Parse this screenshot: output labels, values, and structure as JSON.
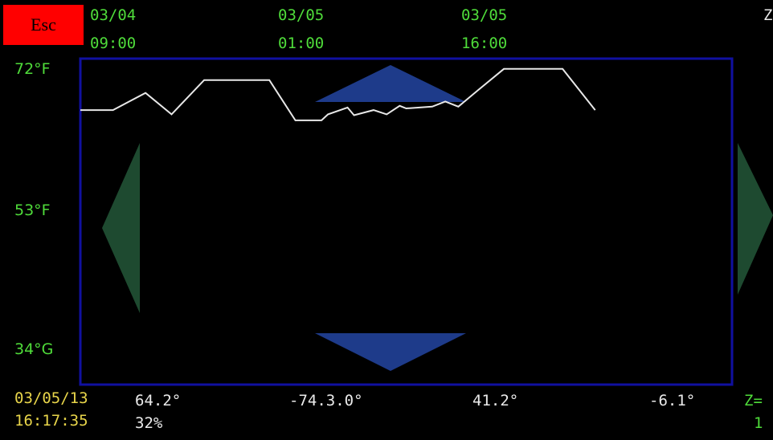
{
  "esc_label": "Esc",
  "time_labels": [
    {
      "date": "03/04",
      "time": "09:00"
    },
    {
      "date": "03/05",
      "time": "01:00"
    },
    {
      "date": "03/05",
      "time": "16:00"
    }
  ],
  "corner_label": "Z",
  "y_labels": {
    "top": "72°F",
    "mid": "53°F",
    "bottom": "34°G"
  },
  "bottom": {
    "date": "03/05/13",
    "time": "16:17:35",
    "temp": "64.2°",
    "humidity": "32%",
    "lon": "-74.3.0°",
    "lat": "41.2°",
    "val": "-6.1°",
    "zoom_label": "Z=",
    "zoom_value": "1"
  },
  "colors": {
    "frame": "#1010a0",
    "line": "#e8e8e8",
    "nav_lr": "#1e4a30",
    "nav_ud": "#1e3b8a",
    "text_green": "#4fdc3a",
    "text_yellow": "#e8d54a",
    "esc_bg": "#ff0000"
  },
  "icons": {
    "left": "arrow-left-icon",
    "right": "arrow-right-icon",
    "up": "arrow-up-icon",
    "down": "arrow-down-icon"
  },
  "chart_data": {
    "type": "line",
    "ylim": [
      34,
      72
    ],
    "x": [
      0,
      0.05,
      0.1,
      0.14,
      0.19,
      0.24,
      0.29,
      0.33,
      0.37,
      0.38,
      0.41,
      0.42,
      0.45,
      0.47,
      0.49,
      0.5,
      0.54,
      0.56,
      0.58,
      0.61,
      0.65,
      0.69,
      0.73,
      0.74,
      0.79
    ],
    "series": [
      {
        "values": [
          66,
          66,
          68,
          65.5,
          69.5,
          69.5,
          69.5,
          64.8,
          64.8,
          65.5,
          66.3,
          65.4,
          66.0,
          65.5,
          66.5,
          66.2,
          66.4,
          67.0,
          66.4,
          68.3,
          70.8,
          70.8,
          70.8,
          70.8,
          66.0
        ]
      }
    ]
  }
}
